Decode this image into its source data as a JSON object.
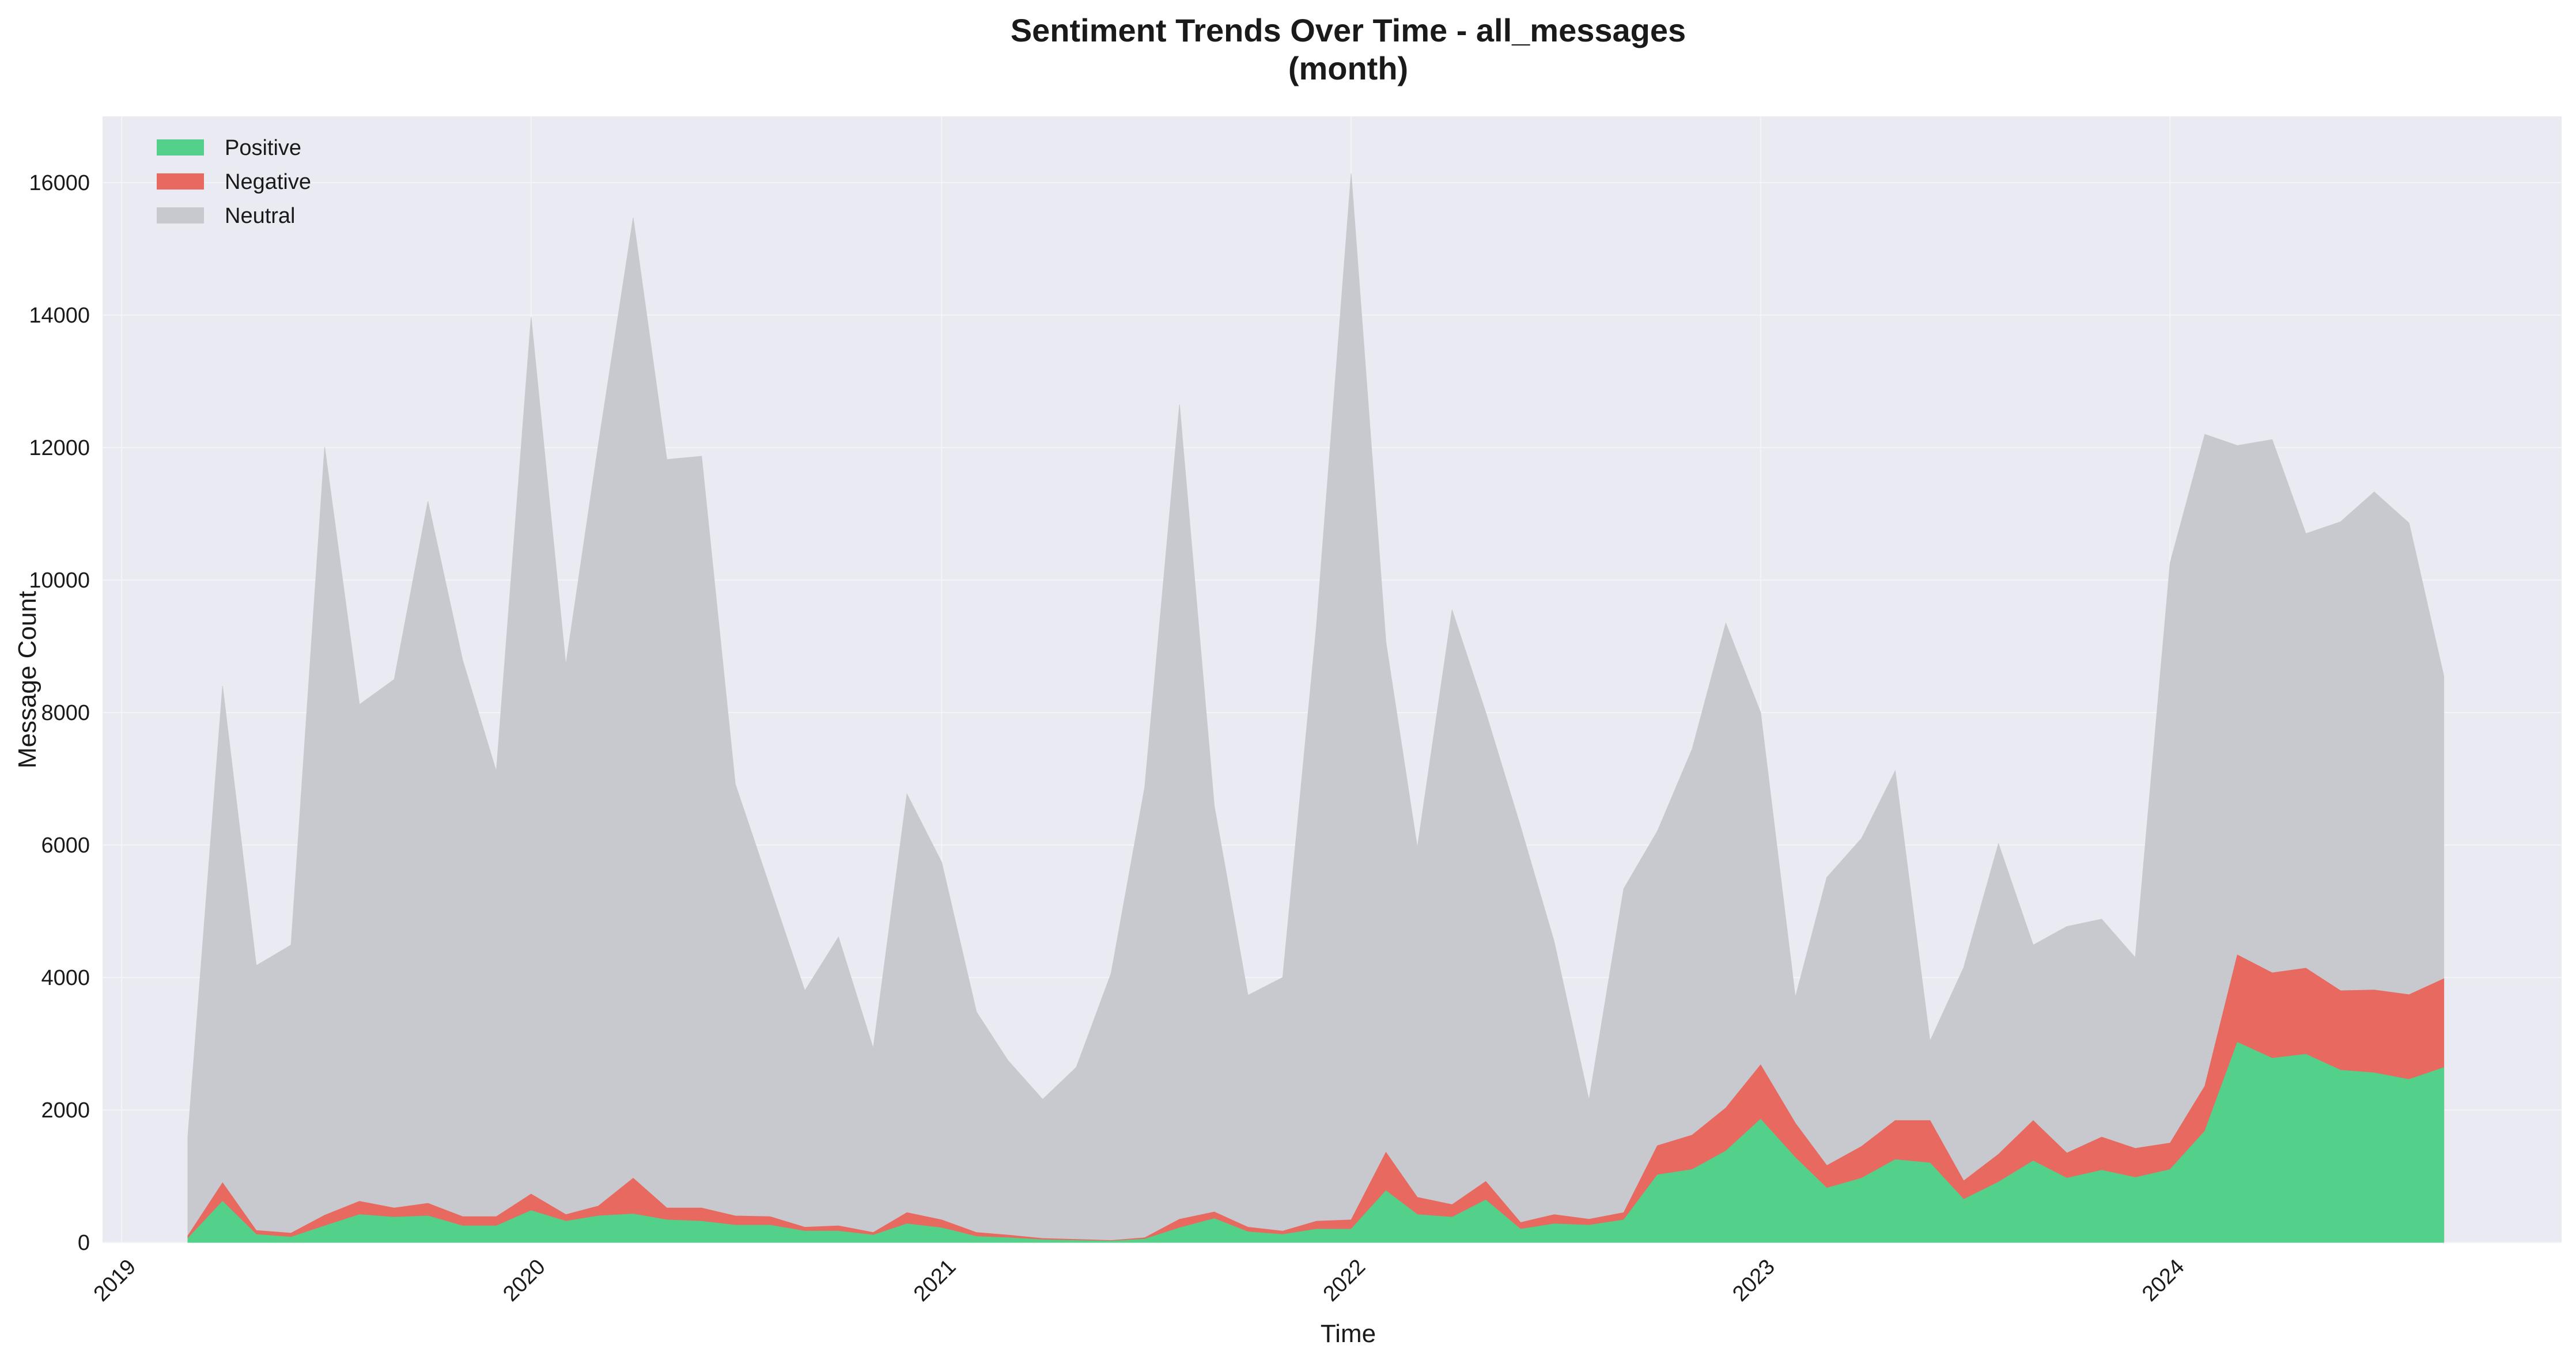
{
  "chart_data": {
    "type": "area",
    "stacked": true,
    "title": "Sentiment Trends Over Time - all_messages",
    "subtitle": "(month)",
    "xlabel": "Time",
    "ylabel": "Message Count",
    "ylim": [
      0,
      17000
    ],
    "yticks": [
      0,
      2000,
      4000,
      6000,
      8000,
      10000,
      12000,
      14000,
      16000
    ],
    "xticks": [
      "2019",
      "2020",
      "2021",
      "2022",
      "2023",
      "2024"
    ],
    "xlim": [
      "2018-12-15",
      "2024-12-15"
    ],
    "grid": true,
    "legend_position": "top-left",
    "x": [
      "2019-03",
      "2019-04",
      "2019-05",
      "2019-06",
      "2019-07",
      "2019-08",
      "2019-09",
      "2019-10",
      "2019-11",
      "2019-12",
      "2020-01",
      "2020-02",
      "2020-03",
      "2020-04",
      "2020-05",
      "2020-06",
      "2020-07",
      "2020-08",
      "2020-09",
      "2020-10",
      "2020-11",
      "2020-12",
      "2021-01",
      "2021-02",
      "2021-03",
      "2021-04",
      "2021-05",
      "2021-06",
      "2021-07",
      "2021-08",
      "2021-09",
      "2021-10",
      "2021-11",
      "2021-12",
      "2022-01",
      "2022-02",
      "2022-03",
      "2022-04",
      "2022-05",
      "2022-06",
      "2022-07",
      "2022-08",
      "2022-09",
      "2022-10",
      "2022-11",
      "2022-12",
      "2023-01",
      "2023-02",
      "2023-03",
      "2023-04",
      "2023-05",
      "2023-06",
      "2023-07",
      "2023-08",
      "2023-09",
      "2023-10",
      "2023-11",
      "2023-12",
      "2024-01",
      "2024-02",
      "2024-03",
      "2024-04",
      "2024-05",
      "2024-06",
      "2024-07",
      "2024-08",
      "2024-09"
    ],
    "series": [
      {
        "name": "Positive",
        "color": "#53d18a",
        "values": [
          60,
          620,
          120,
          80,
          250,
          420,
          380,
          400,
          250,
          250,
          480,
          320,
          400,
          430,
          340,
          320,
          260,
          260,
          170,
          170,
          110,
          280,
          220,
          90,
          70,
          40,
          30,
          20,
          50,
          220,
          360,
          160,
          120,
          200,
          200,
          780,
          420,
          380,
          640,
          200,
          280,
          260,
          340,
          1020,
          1100,
          1380,
          1860,
          1280,
          820,
          970,
          1250,
          1200,
          650,
          910,
          1230,
          970,
          1090,
          980,
          1100,
          1680,
          3020,
          2780,
          2840,
          2600,
          2560,
          2460,
          2640
        ]
      },
      {
        "name": "Negative",
        "color": "#e8695f",
        "values": [
          40,
          280,
          60,
          60,
          160,
          200,
          140,
          190,
          140,
          140,
          250,
          100,
          150,
          540,
          180,
          200,
          140,
          130,
          60,
          80,
          40,
          170,
          120,
          60,
          40,
          20,
          15,
          10,
          20,
          130,
          100,
          70,
          50,
          120,
          140,
          580,
          260,
          190,
          280,
          100,
          140,
          90,
          110,
          440,
          520,
          650,
          820,
          520,
          340,
          480,
          590,
          640,
          280,
          420,
          610,
          380,
          500,
          440,
          400,
          680,
          1320,
          1290,
          1300,
          1200,
          1250,
          1280,
          1340
        ]
      },
      {
        "name": "Neutral",
        "color": "#c8c9ce",
        "values": [
          1500,
          7500,
          4000,
          4350,
          11600,
          7500,
          7980,
          10600,
          8400,
          6720,
          13240,
          8300,
          11500,
          14500,
          11300,
          11350,
          6520,
          4970,
          3570,
          4360,
          2780,
          6320,
          5400,
          3330,
          2640,
          2100,
          2600,
          4030,
          6800,
          12300,
          6130,
          3500,
          3830,
          8970,
          15800,
          7700,
          5280,
          8980,
          7080,
          5980,
          4120,
          1800,
          4890,
          4750,
          5830,
          7320,
          5320,
          1900,
          4350,
          4650,
          5280,
          1200,
          3220,
          4690,
          2650,
          3420,
          3290,
          2880,
          8760,
          9840,
          7690,
          8050,
          6560,
          7080,
          7520,
          7120,
          4570
        ]
      }
    ]
  }
}
